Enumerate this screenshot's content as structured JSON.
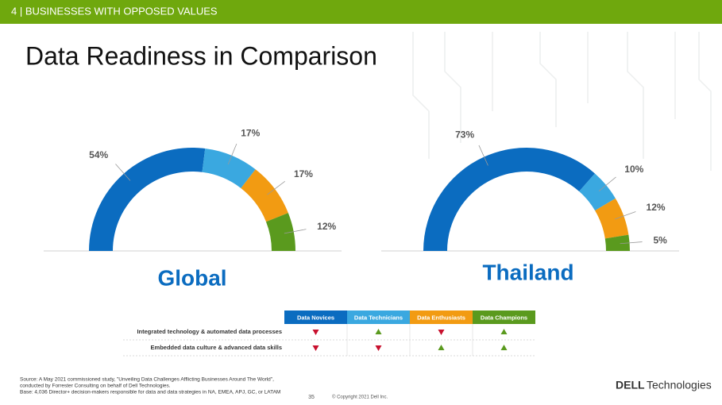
{
  "header": {
    "section": "4 | BUSINESSES WITH OPPOSED VALUES"
  },
  "title": "Data Readiness in Comparison",
  "chart_data": [
    {
      "type": "pie",
      "title": "Global",
      "values": [
        54,
        17,
        17,
        12
      ],
      "value_labels": [
        "54%",
        "17%",
        "17%",
        "12%"
      ],
      "colors": [
        "#0b6cc0",
        "#3aa8e0",
        "#f29b12",
        "#5a9a1e"
      ]
    },
    {
      "type": "pie",
      "title": "Thailand",
      "values": [
        73,
        10,
        12,
        5
      ],
      "value_labels": [
        "73%",
        "10%",
        "12%",
        "5%"
      ],
      "colors": [
        "#0b6cc0",
        "#3aa8e0",
        "#f29b12",
        "#5a9a1e"
      ]
    }
  ],
  "table": {
    "columns": [
      {
        "name": "Data Novices",
        "color": "#0b6cc0"
      },
      {
        "name": "Data Technicians",
        "color": "#3aa8e0"
      },
      {
        "name": "Data Enthusiasts",
        "color": "#f29b12"
      },
      {
        "name": "Data Champions",
        "color": "#5a9a1e"
      }
    ],
    "rows": [
      {
        "label": "Integrated technology & automated data processes",
        "values": [
          "down",
          "up",
          "down",
          "up"
        ]
      },
      {
        "label": "Embedded data culture & advanced data skills",
        "values": [
          "down",
          "down",
          "up",
          "up"
        ]
      }
    ]
  },
  "footer": {
    "source": [
      "Source: A May 2021 commissioned study, \"Unveiling Data Challenges Afflicting Businesses Around The World\",",
      "conducted by Forrester Consulting on behalf of Dell Technologies.",
      "Base: 4,036 Director+ decision-makers responsible for data and data strategies in NA, EMEA, APJ, GC, or LATAM"
    ],
    "page": "35",
    "copyright": "© Copyright 2021 Dell Inc.",
    "logo": {
      "brand": "DELL",
      "suffix": "Technologies"
    }
  }
}
